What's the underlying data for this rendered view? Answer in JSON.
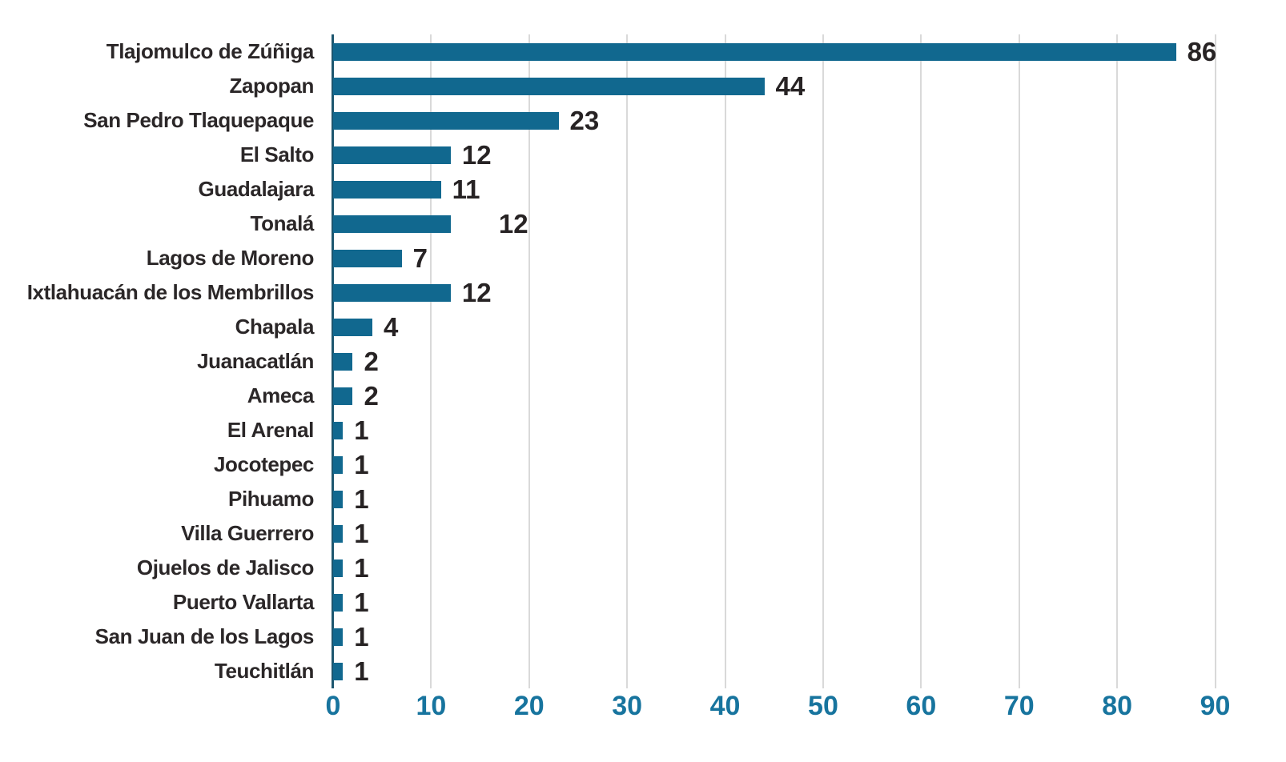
{
  "chart_data": {
    "type": "bar",
    "orientation": "horizontal",
    "title": "",
    "xlabel": "",
    "ylabel": "",
    "points": [
      {
        "label": "Tlajomulco de Zúñiga",
        "value": 86
      },
      {
        "label": "Zapopan",
        "value": 44
      },
      {
        "label": "San Pedro Tlaquepaque",
        "value": 23
      },
      {
        "label": "El Salto",
        "value": 12
      },
      {
        "label": "Guadalajara",
        "value": 11
      },
      {
        "label": "Tonalá",
        "value": 12,
        "label_dx": 46
      },
      {
        "label": "Lagos de Moreno",
        "value": 7
      },
      {
        "label": "Ixtlahuacán de los Membrillos",
        "value": 12
      },
      {
        "label": "Chapala",
        "value": 4
      },
      {
        "label": "Juanacatlán",
        "value": 2
      },
      {
        "label": "Ameca",
        "value": 2
      },
      {
        "label": "El Arenal",
        "value": 1
      },
      {
        "label": "Jocotepec",
        "value": 1
      },
      {
        "label": "Pihuamo",
        "value": 1
      },
      {
        "label": "Villa Guerrero",
        "value": 1
      },
      {
        "label": "Ojuelos de Jalisco",
        "value": 1
      },
      {
        "label": "Puerto Vallarta",
        "value": 1
      },
      {
        "label": "San Juan de los Lagos",
        "value": 1
      },
      {
        "label": "Teuchitlán",
        "value": 1
      }
    ],
    "x_ticks": [
      0,
      10,
      20,
      30,
      40,
      50,
      60,
      70,
      80,
      90
    ],
    "xlim": [
      0,
      92
    ],
    "grid": "vertical-only",
    "legend": "none",
    "value_labels": "end-of-bar"
  },
  "colors": {
    "bar": "#11688f",
    "axis_line": "#1d566f",
    "gridline": "#d9d9d9",
    "tick_label": "#17749e",
    "category_label": "#2b2728",
    "value_label": "#272324",
    "background": "#ffffff"
  }
}
